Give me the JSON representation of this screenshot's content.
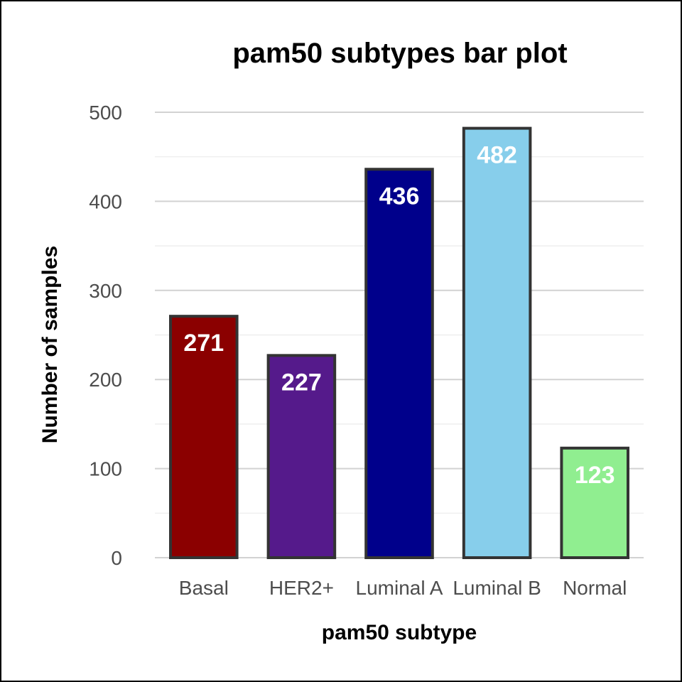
{
  "chart_data": {
    "type": "bar",
    "title": "pam50 subtypes bar plot",
    "xlabel": "pam50 subtype",
    "ylabel": "Number of samples",
    "categories": [
      "Basal",
      "HER2+",
      "Luminal A",
      "Luminal B",
      "Normal"
    ],
    "values": [
      271,
      227,
      436,
      482,
      123
    ],
    "bar_labels": [
      "271",
      "227",
      "436",
      "482",
      "123"
    ],
    "colors": [
      "#8b0000",
      "#551a8b",
      "#00008b",
      "#87ceeb",
      "#90ee90"
    ],
    "outline_color": "#333333",
    "label_color": "#ffffff",
    "ylim": [
      0,
      500
    ],
    "yticks": [
      0,
      100,
      200,
      300,
      400,
      500
    ],
    "ytick_labels": [
      "0",
      "100",
      "200",
      "300",
      "400",
      "500"
    ],
    "grid": true,
    "legend": false
  }
}
